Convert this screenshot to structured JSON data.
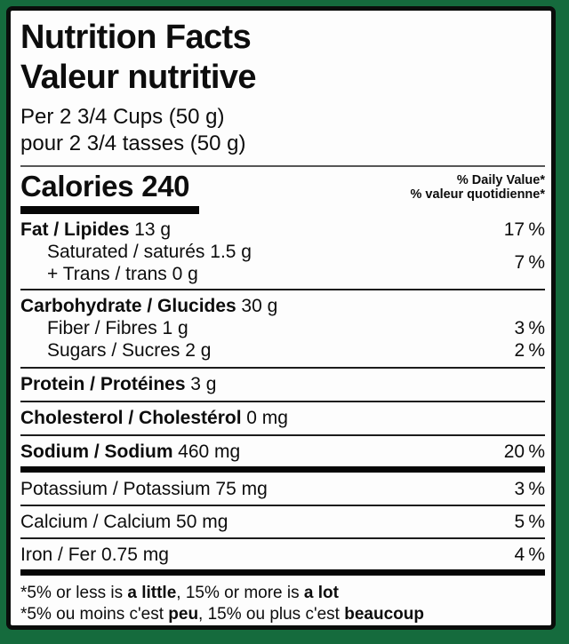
{
  "colors": {
    "frame_green": "#156b3d",
    "panel_white": "#fdfdfd",
    "border_black": "#0a0d0b",
    "text_black": "#0d0d0d"
  },
  "header": {
    "title_en": "Nutrition Facts",
    "title_fr": "Valeur nutritive",
    "serving_en": "Per 2 3/4 Cups (50 g)",
    "serving_fr": "pour 2 3/4 tasses (50 g)"
  },
  "calories": {
    "label": "Calories",
    "value": "240"
  },
  "daily_value_note": {
    "en": "% Daily Value*",
    "fr": "% valeur quotidienne*"
  },
  "nutrients": {
    "fat": {
      "name": "Fat / Lipides",
      "amount": "13 g",
      "dv": "17 %"
    },
    "saturated_trans": {
      "line1": "Saturated / saturés 1.5 g",
      "line2": "+ Trans / trans 0 g",
      "dv": "7 %"
    },
    "carbohydrate": {
      "name": "Carbohydrate / Glucides",
      "amount": "30 g"
    },
    "fiber": {
      "name": "Fiber / Fibres 1 g",
      "dv": "3 %"
    },
    "sugars": {
      "name": "Sugars / Sucres 2 g",
      "dv": "2 %"
    },
    "protein": {
      "name": "Protein / Protéines",
      "amount": "3 g"
    },
    "cholesterol": {
      "name": "Cholesterol / Cholestérol",
      "amount": "0 mg"
    },
    "sodium": {
      "name": "Sodium / Sodium",
      "amount": "460 mg",
      "dv": "20 %"
    },
    "potassium": {
      "name": "Potassium / Potassium 75 mg",
      "dv": "3 %"
    },
    "calcium": {
      "name": "Calcium / Calcium 50 mg",
      "dv": "5 %"
    },
    "iron": {
      "name": "Iron / Fer 0.75 mg",
      "dv": "4 %"
    }
  },
  "footnote": {
    "en_parts": [
      "*5% or less is ",
      "a little",
      ", 15% or more is ",
      "a lot"
    ],
    "fr_parts": [
      "*5% ou moins c'est ",
      "peu",
      ", 15% ou plus c'est ",
      "beaucoup"
    ]
  }
}
